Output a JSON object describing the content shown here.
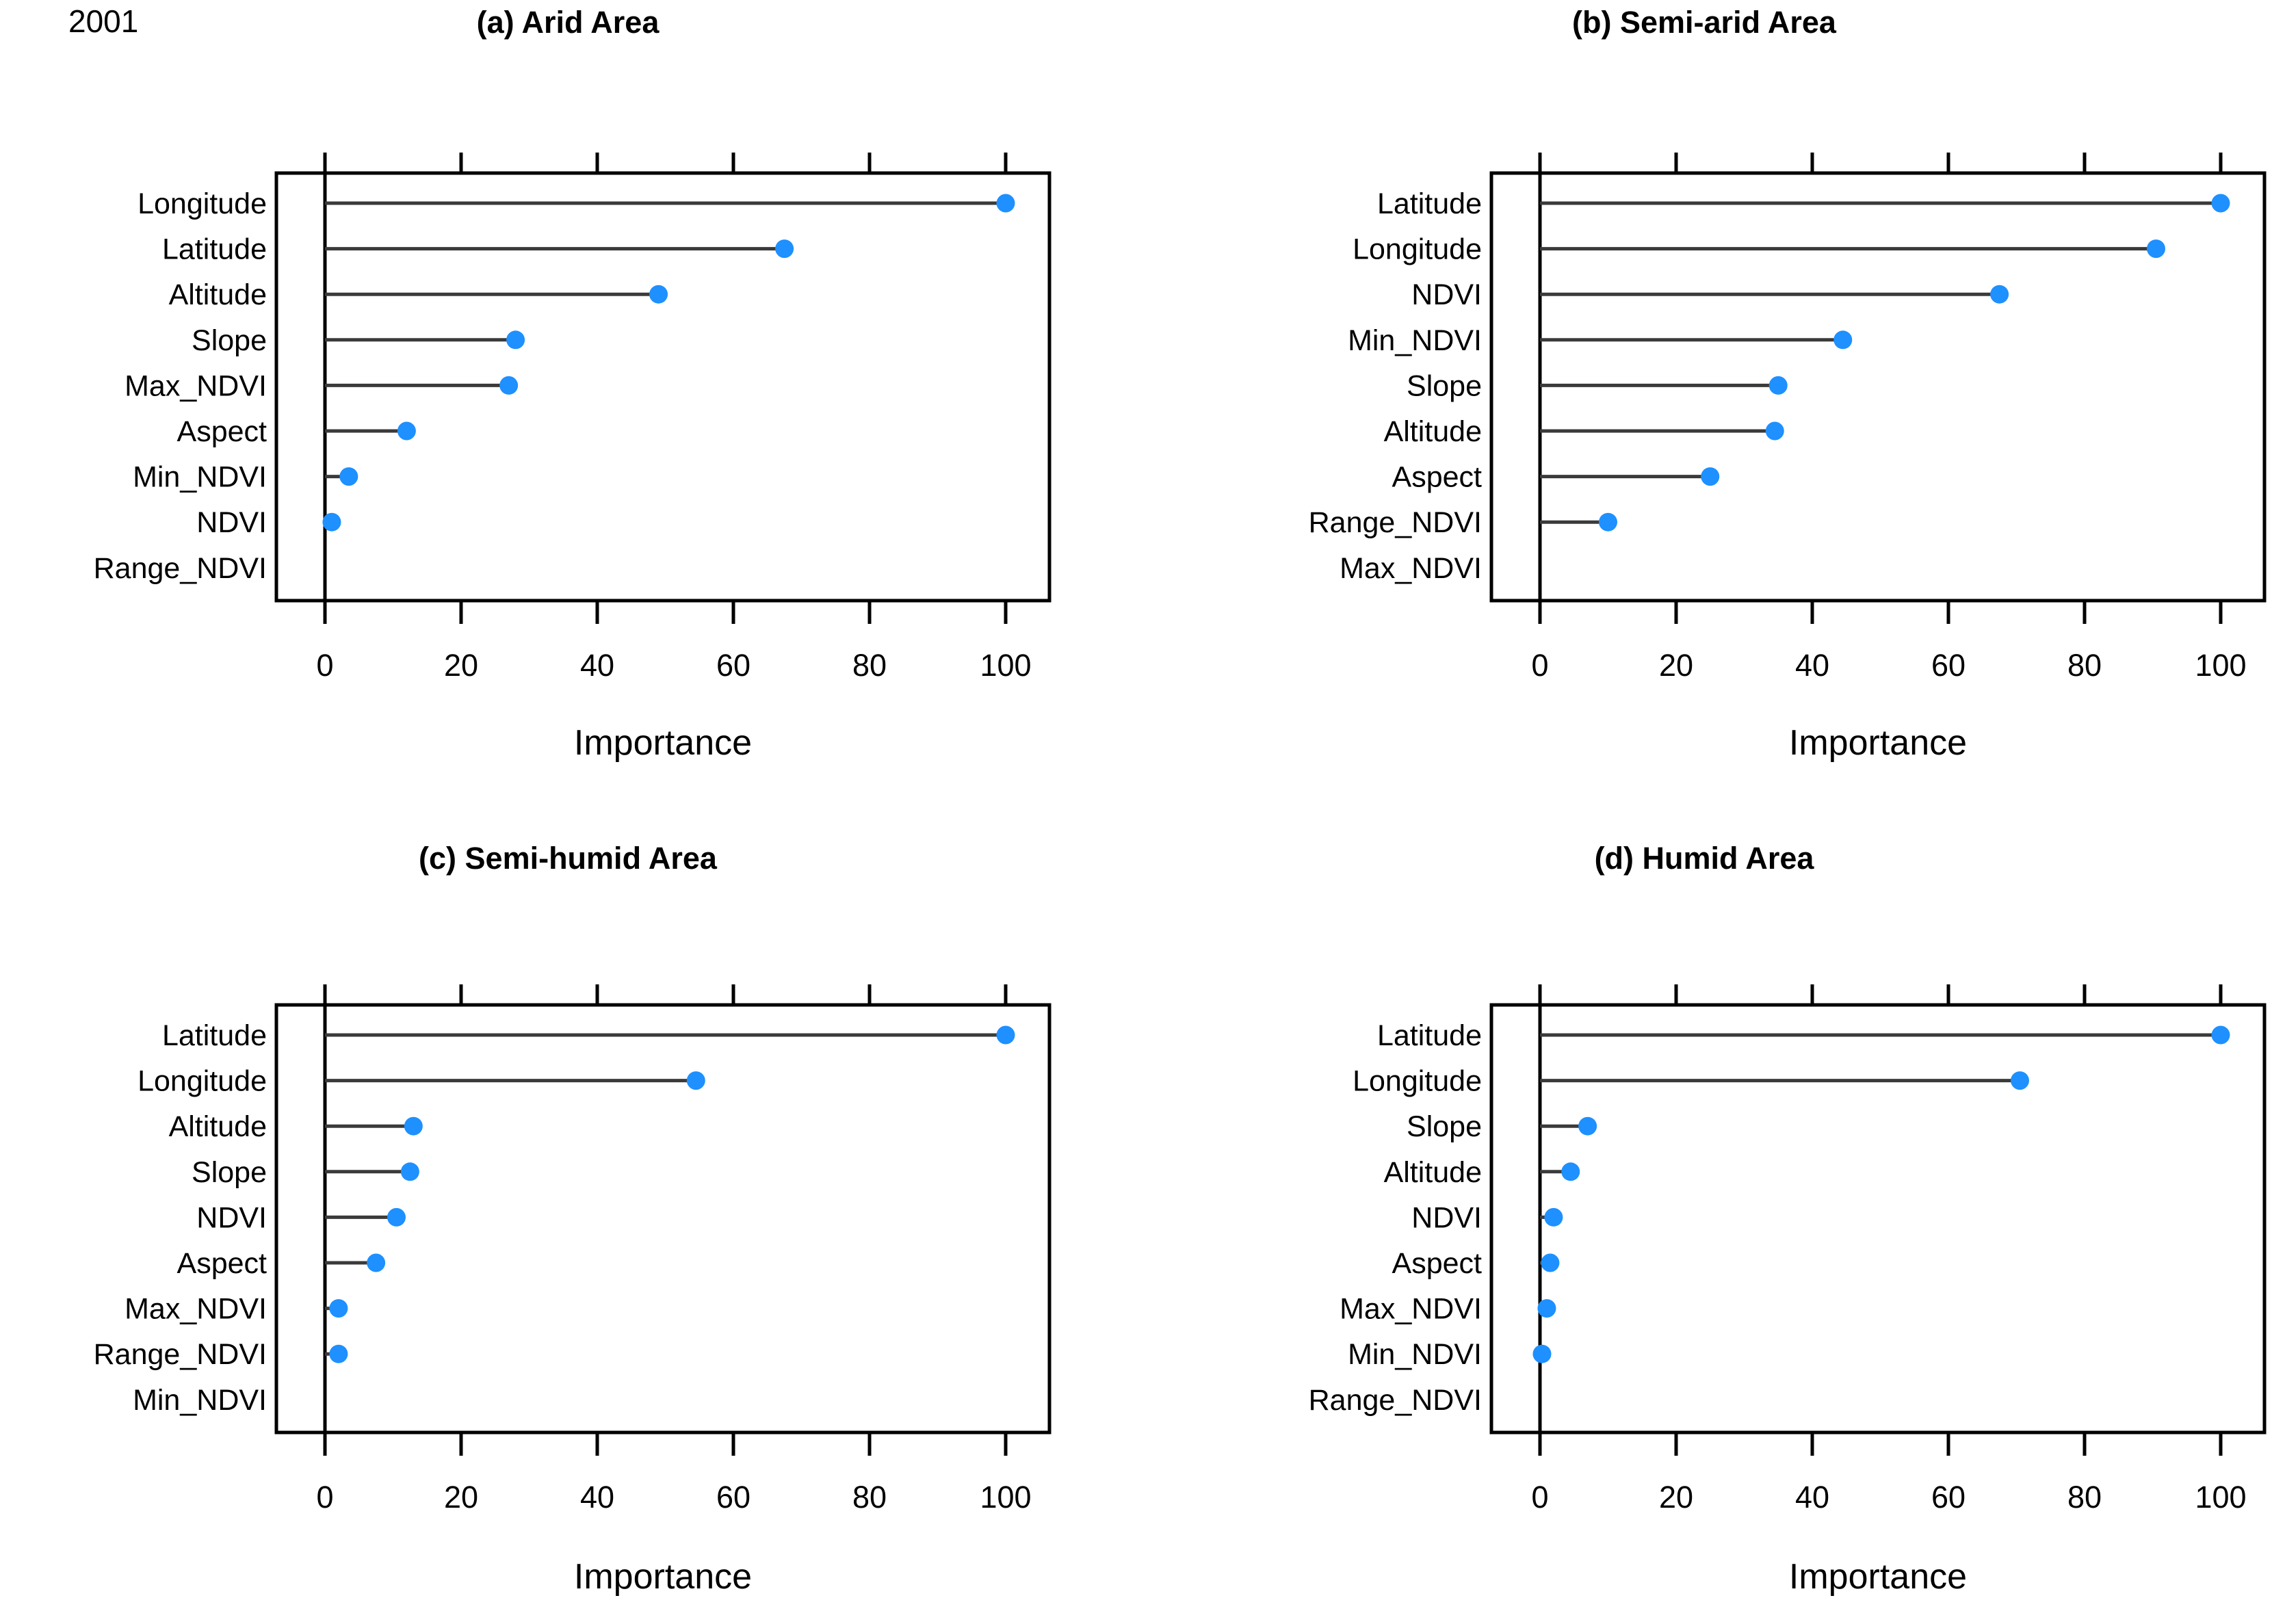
{
  "year_label": "2001",
  "style": {
    "dot_color": "#1E90FF",
    "stem_color": "#3a3a3a",
    "frame_color": "#000000",
    "background": "#ffffff"
  },
  "chart_data": [
    {
      "type": "scatter",
      "subtype": "dotchart-lollipop",
      "title": "(a) Arid Area",
      "xlabel": "Importance",
      "xlim": [
        0,
        106
      ],
      "x_ticks": [
        0,
        20,
        40,
        60,
        80,
        100
      ],
      "grid": false,
      "categories": [
        "Longitude",
        "Latitude",
        "Altitude",
        "Slope",
        "Max_NDVI",
        "Aspect",
        "Min_NDVI",
        "NDVI",
        "Range_NDVI"
      ],
      "values": [
        100,
        67.5,
        49,
        28,
        27,
        12,
        3.5,
        1,
        null
      ]
    },
    {
      "type": "scatter",
      "subtype": "dotchart-lollipop",
      "title": "(b) Semi-arid Area",
      "xlabel": "Importance",
      "xlim": [
        0,
        106
      ],
      "x_ticks": [
        0,
        20,
        40,
        60,
        80,
        100
      ],
      "grid": false,
      "categories": [
        "Latitude",
        "Longitude",
        "NDVI",
        "Min_NDVI",
        "Slope",
        "Altitude",
        "Aspect",
        "Range_NDVI",
        "Max_NDVI"
      ],
      "values": [
        100,
        90.5,
        67.5,
        44.5,
        35,
        34.5,
        25,
        10,
        null
      ]
    },
    {
      "type": "scatter",
      "subtype": "dotchart-lollipop",
      "title": "(c) Semi-humid Area",
      "xlabel": "Importance",
      "xlim": [
        0,
        106
      ],
      "x_ticks": [
        0,
        20,
        40,
        60,
        80,
        100
      ],
      "grid": false,
      "categories": [
        "Latitude",
        "Longitude",
        "Altitude",
        "Slope",
        "NDVI",
        "Aspect",
        "Max_NDVI",
        "Range_NDVI",
        "Min_NDVI"
      ],
      "values": [
        100,
        54.5,
        13,
        12.5,
        10.5,
        7.5,
        2,
        2,
        null
      ]
    },
    {
      "type": "scatter",
      "subtype": "dotchart-lollipop",
      "title": "(d) Humid Area",
      "xlabel": "Importance",
      "xlim": [
        0,
        106
      ],
      "x_ticks": [
        0,
        20,
        40,
        60,
        80,
        100
      ],
      "grid": false,
      "categories": [
        "Latitude",
        "Longitude",
        "Slope",
        "Altitude",
        "NDVI",
        "Aspect",
        "Max_NDVI",
        "Min_NDVI",
        "Range_NDVI"
      ],
      "values": [
        100,
        70.5,
        7,
        4.5,
        2,
        1.5,
        1,
        0.3,
        null
      ]
    }
  ]
}
